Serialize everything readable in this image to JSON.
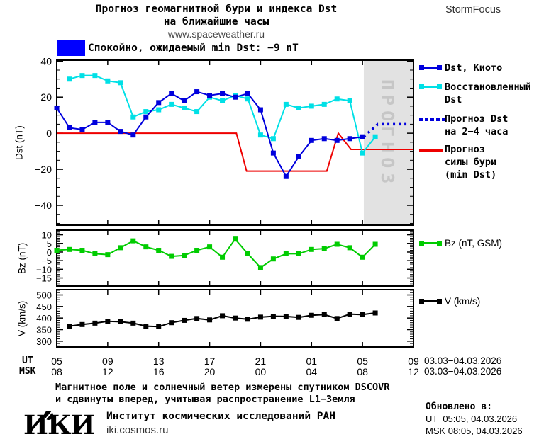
{
  "header": {
    "title_line1": "Прогноз геомагнитной бури и индекса Dst",
    "title_line2": "на ближайшие часы",
    "website": "www.spaceweather.ru",
    "brand": "StormFocus"
  },
  "status": {
    "label": "Спокойно, ожидаемый min Dst: −9 nT",
    "swatch_color": "#0000ff"
  },
  "chart_data": [
    {
      "type": "line",
      "ylabel": "Dst (nT)",
      "ylim": [
        -51,
        40.5
      ],
      "yticks_major": [
        40,
        20,
        0,
        -20,
        -40
      ],
      "ytick_minor_step": 5,
      "x_hours_total": 28,
      "xticks_major_hours": [
        4,
        8,
        12,
        16,
        20,
        24
      ],
      "grid": false,
      "forecast_band": {
        "start_hour": 24.1,
        "end_hour": 28,
        "label": "ПРОГНОЗ",
        "fill": "#e2e2e2",
        "label_color": "#c6c6c6"
      },
      "series": [
        {
          "name": "Прогноз силы бури (min Dst)",
          "color": "#ee0000",
          "style": "solid",
          "points": [
            [
              0,
              0
            ],
            [
              14.1,
              0
            ],
            [
              14.9,
              -21
            ],
            [
              21.2,
              -21
            ],
            [
              22.1,
              0
            ],
            [
              23.1,
              -9
            ],
            [
              28,
              -9
            ]
          ]
        },
        {
          "name": "Восстановленный Dst",
          "color": "#00e0e6",
          "marker": "square",
          "start_hour": 1,
          "values": [
            30,
            32,
            32,
            29,
            28,
            9,
            12,
            13,
            16,
            14,
            12,
            20,
            18,
            21,
            19,
            -1,
            -3,
            16,
            14,
            15,
            16,
            19,
            18,
            -11,
            -2
          ]
        },
        {
          "name": "Dst, Киото",
          "color": "#0000dd",
          "marker": "square",
          "start_hour": 0,
          "values": [
            14,
            3,
            2,
            6,
            6,
            1,
            -1,
            9,
            17,
            22,
            18,
            23,
            21,
            22,
            20,
            22,
            13,
            -11,
            -24,
            -13,
            -4,
            -3,
            -4,
            -3,
            -2
          ]
        },
        {
          "name": "Прогноз Dst на 2−4 часа",
          "color": "#0000dd",
          "style": "dotted",
          "points": [
            [
              24.1,
              -2
            ],
            [
              25.2,
              5
            ],
            [
              27.6,
              5
            ]
          ]
        }
      ]
    },
    {
      "type": "line",
      "ylabel": "Bz (nT)",
      "ylim": [
        -19.7,
        12.7
      ],
      "yticks_major": [
        10,
        5,
        0,
        -5,
        -10,
        -15
      ],
      "ytick_minor_step": 1,
      "grid": false,
      "series": [
        {
          "name": "Bz (nT, GSM)",
          "color": "#00cc00",
          "marker": "square",
          "start_hour": 0,
          "values": [
            1,
            1.5,
            1,
            -1,
            -1.5,
            2.5,
            6.5,
            3,
            1,
            -2.5,
            -2,
            1,
            3,
            -3,
            7.5,
            -1,
            -9,
            -4,
            -1,
            -1,
            1.5,
            2,
            4.5,
            2.5,
            -3,
            4.5
          ]
        }
      ]
    },
    {
      "type": "line",
      "ylabel": "V (km/s)",
      "ylim": [
        275,
        523
      ],
      "yticks_major": [
        500,
        450,
        400,
        350,
        300
      ],
      "ytick_minor_step": 10,
      "grid": false,
      "series": [
        {
          "name": "V (km/s)",
          "color": "#000000",
          "marker": "square",
          "start_hour": 1,
          "values": [
            365,
            372,
            378,
            386,
            384,
            378,
            365,
            363,
            380,
            390,
            398,
            392,
            410,
            400,
            395,
            404,
            408,
            407,
            403,
            412,
            415,
            398,
            417,
            415,
            422
          ]
        }
      ]
    }
  ],
  "legend": {
    "dst_kyoto": "Dst, Киото",
    "restored_line1": "Восстановленный",
    "restored_line2": "Dst",
    "forecast_dst_line1": "Прогноз Dst",
    "forecast_dst_line2": "на 2−4 часа",
    "storm_line1": "Прогноз",
    "storm_line2": "силы бури",
    "storm_line3": "(min Dst)",
    "bz": "Bz (nT, GSM)",
    "v": "V (km/s)"
  },
  "time_axis": {
    "ut_label": "UT",
    "msk_label": "MSK",
    "ut_ticks": [
      "05",
      "09",
      "13",
      "17",
      "21",
      "01",
      "05",
      "09"
    ],
    "msk_ticks": [
      "08",
      "12",
      "16",
      "20",
      "00",
      "04",
      "08",
      "12"
    ],
    "ut_date": "03.03−04.03.2026",
    "msk_date": "03.03−04.03.2026"
  },
  "footer": {
    "note_line1": "Магнитное поле и солнечный ветер измерены спутником DSCOVR",
    "note_line2": "и сдвинуты вперед, учитывая распространение L1−Земля",
    "updated_label": "Обновлено в:",
    "updated_ut": "UT  05:05, 04.03.2026",
    "updated_msk": "MSK 08:05, 04.03.2026",
    "org_logo": "ИКИ",
    "org_name": "Институт космических исследований РАН",
    "org_site": "iki.cosmos.ru"
  }
}
